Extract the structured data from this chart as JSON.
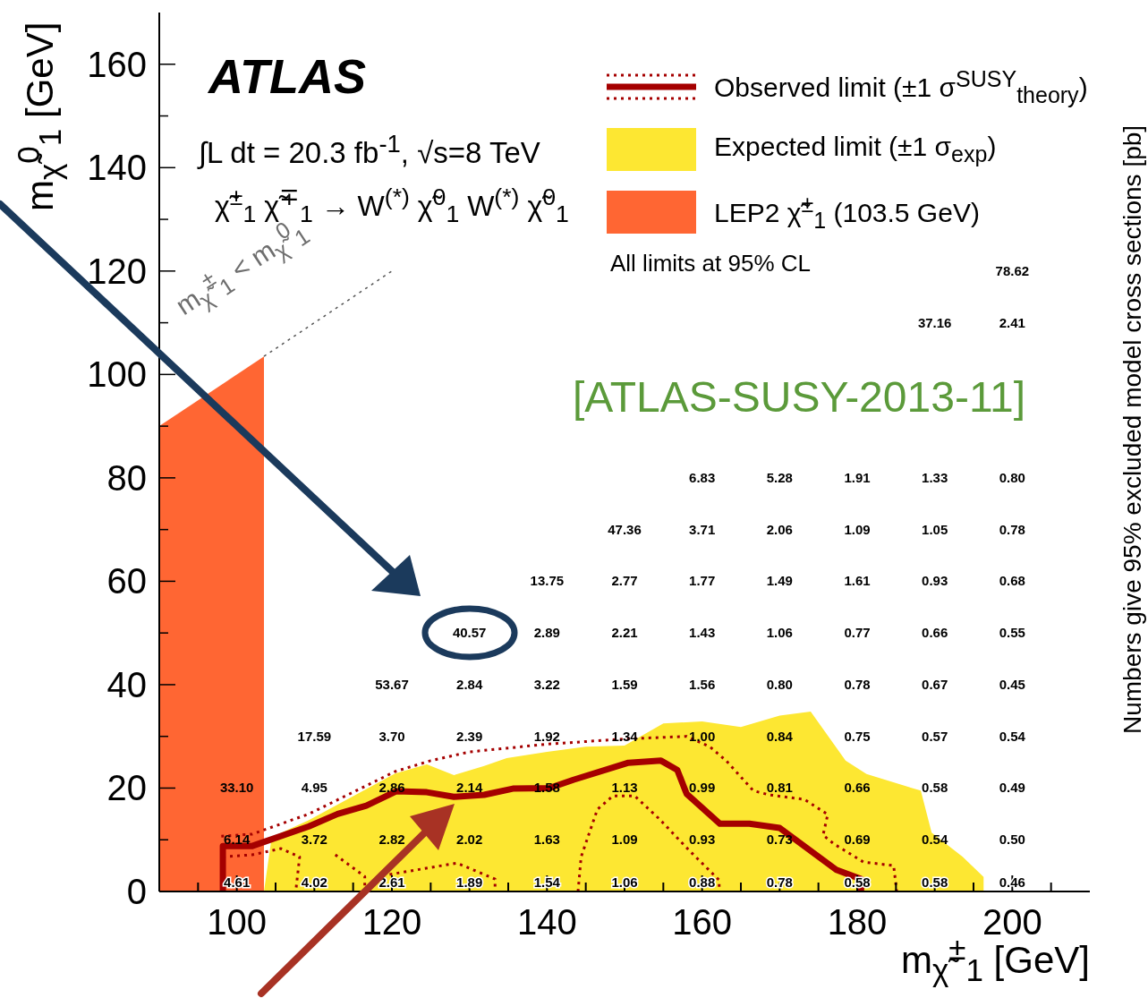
{
  "chart_data": {
    "type": "line",
    "xlabel": "m$_{χ̃}$$^{±}$$_{1}$ [GeV]",
    "ylabel": "m$_{χ̃}$$^{0}$$_{1}$ [GeV]",
    "y2label": "Numbers give 95% excluded model cross sections [pb]",
    "xlim": [
      90,
      210
    ],
    "ylim": [
      0,
      170
    ],
    "xticks": [
      {
        "value": 95,
        "label": null
      },
      100,
      {
        "value": 105,
        "label": null
      },
      {
        "value": 110,
        "label": null
      },
      {
        "value": 115,
        "label": null
      },
      120,
      {
        "value": 125,
        "label": null
      },
      {
        "value": 130,
        "label": null
      },
      {
        "value": 135,
        "label": null
      },
      140,
      {
        "value": 145,
        "label": null
      },
      {
        "value": 150,
        "label": null
      },
      {
        "value": 155,
        "label": null
      },
      160,
      {
        "value": 165,
        "label": null
      },
      {
        "value": 170,
        "label": null
      },
      {
        "value": 175,
        "label": null
      },
      180,
      {
        "value": 185,
        "label": null
      },
      {
        "value": 190,
        "label": null
      },
      {
        "value": 195,
        "label": null
      },
      200,
      {
        "value": 205,
        "label": null
      }
    ],
    "yticks": [
      0,
      {
        "value": 10,
        "label": null
      },
      20,
      {
        "value": 30,
        "label": null
      },
      40,
      {
        "value": 50,
        "label": null
      },
      60,
      {
        "value": 70,
        "label": null
      },
      80,
      {
        "value": 90,
        "label": null
      },
      100,
      {
        "value": 110,
        "label": null
      },
      120,
      {
        "value": 130,
        "label": null
      },
      140,
      {
        "value": 150,
        "label": null
      },
      160
    ],
    "legend": "top right",
    "series": [
      {
        "name": "Observed limit (±1 σ$^{SUSY}$$_{theory}$)",
        "type": "line",
        "color": "#a50000",
        "x": [
          98.2,
          98.2,
          102,
          109.3,
          113,
          116.7,
          120.6,
          124.5,
          128,
          131.9,
          135.6,
          140.3,
          143.4,
          150.5,
          154.7,
          156.8,
          158,
          162.3,
          166.1,
          170,
          177.3,
          180.5,
          180.5
        ],
        "values": [
          0,
          8.8,
          8.8,
          12.6,
          15,
          16.6,
          19.4,
          19.2,
          18.3,
          18.7,
          19.9,
          20,
          21.6,
          24.9,
          25.3,
          23.5,
          18.9,
          13.1,
          13.1,
          12.3,
          4.2,
          2.4,
          0
        ]
      },
      {
        "name": "Expected limit (±1 σ$_{exp}$)",
        "type": "area",
        "color": "#fde732",
        "x": [
          103.5,
          104.5,
          109.3,
          120.4,
          124.5,
          128,
          131.9,
          134.8,
          140,
          145,
          150,
          155,
          160,
          165,
          170,
          174,
          178.5,
          181.2,
          188.2,
          189.6,
          193.6,
          196.3,
          196.3
        ],
        "values": [
          0,
          10.5,
          13.8,
          22.8,
          24.6,
          22.5,
          24.3,
          25.8,
          27,
          28,
          28.2,
          32.5,
          32.9,
          31.8,
          34,
          34.8,
          25.3,
          22.7,
          19.5,
          11.4,
          6.7,
          2.8,
          0
        ]
      },
      {
        "name": "LEP2 χ̃$^{±}$$_{1}$ (103.5 GeV)",
        "type": "area",
        "color": "#ff6633",
        "x": [
          90,
          103.5,
          103.5
        ],
        "values": [
          90,
          103.5,
          0
        ]
      },
      {
        "type": "line",
        "color": "#a50000",
        "line_style": "dotted",
        "x": [
          98,
          102,
          109.3,
          120.4,
          125,
          130,
          140,
          150,
          158,
          161,
          163.1,
          166.6,
          168.6,
          173.2,
          176.2,
          175.6,
          177,
          180.8,
          184.7,
          185.1
        ],
        "values": [
          10.7,
          11.1,
          15,
          23.2,
          25.3,
          27,
          28.5,
          29.5,
          30,
          28,
          25.3,
          19.5,
          18.7,
          17.8,
          14.9,
          10.9,
          9.2,
          5.7,
          5,
          0
        ]
      },
      {
        "type": "line",
        "color": "#a50000",
        "line_style": "dotted",
        "x": [
          98.2,
          102,
          105.7,
          108.1,
          107.6,
          110,
          112.7,
          116.5,
          116.5,
          118,
          119.7,
          128.4,
          133.3,
          133.3,
          140,
          144,
          144.4,
          146.5,
          148.5,
          151.3,
          154.5,
          158.3,
          162.2,
          162.2
        ],
        "values": [
          6.7,
          7.1,
          8.3,
          6.7,
          0,
          null,
          7.1,
          2.9,
          0,
          null,
          3.3,
          5.5,
          2.4,
          0,
          null,
          0,
          6.7,
          15.9,
          18.5,
          18.5,
          14,
          8,
          2.2,
          0
        ]
      },
      {
        "type": "line",
        "color": "#555555",
        "line_style": "dotted",
        "x": [
          103.5,
          120
        ],
        "values": [
          103.5,
          120
        ]
      }
    ],
    "annotations": [
      "ATLAS",
      "∫L dt = 20.3 fb$^{-1}$, √s=8 TeV",
      "χ̃$^{±}$$_{1}$ χ̃$^{∓}$$_{1}$ → W$^{(*)}$ χ̃$^{0}$$_{1}$ W$^{(*)}$ χ̃$^{0}$$_{1}$",
      "All limits at 95% CL",
      "[ATLAS-SUSY-2013-11]",
      "m$_{χ̃}$$^{±}$$_{1}$ < m$_{χ̃}$$^{0}$$_{1}$",
      "4.61",
      "4.02",
      "2.61",
      "1.89",
      "1.54",
      "1.06",
      "0.88",
      "0.78",
      "0.58",
      "0.58",
      "0.46",
      "6.14",
      "3.72",
      "2.82",
      "2.02",
      "1.63",
      "1.09",
      "0.93",
      "0.73",
      "0.69",
      "0.54",
      "0.50",
      "33.10",
      "4.95",
      "2.86",
      "2.14",
      "1.58",
      "1.13",
      "0.99",
      "0.81",
      "0.66",
      "0.58",
      "0.49",
      "17.59",
      "3.70",
      "2.39",
      "1.92",
      "1.34",
      "1.00",
      "0.84",
      "0.75",
      "0.57",
      "0.54",
      "53.67",
      "2.84",
      "3.22",
      "1.59",
      "1.56",
      "0.80",
      "0.78",
      "0.67",
      "0.45",
      "40.57",
      "2.89",
      "2.21",
      "1.43",
      "1.06",
      "0.77",
      "0.66",
      "0.55",
      "13.75",
      "2.77",
      "1.77",
      "1.49",
      "1.61",
      "0.93",
      "0.68",
      "47.36",
      "3.71",
      "2.06",
      "1.09",
      "1.05",
      "0.78",
      "6.83",
      "5.28",
      "1.91",
      "1.33",
      "0.80",
      "37.16",
      "2.41",
      "78.62"
    ]
  }
}
